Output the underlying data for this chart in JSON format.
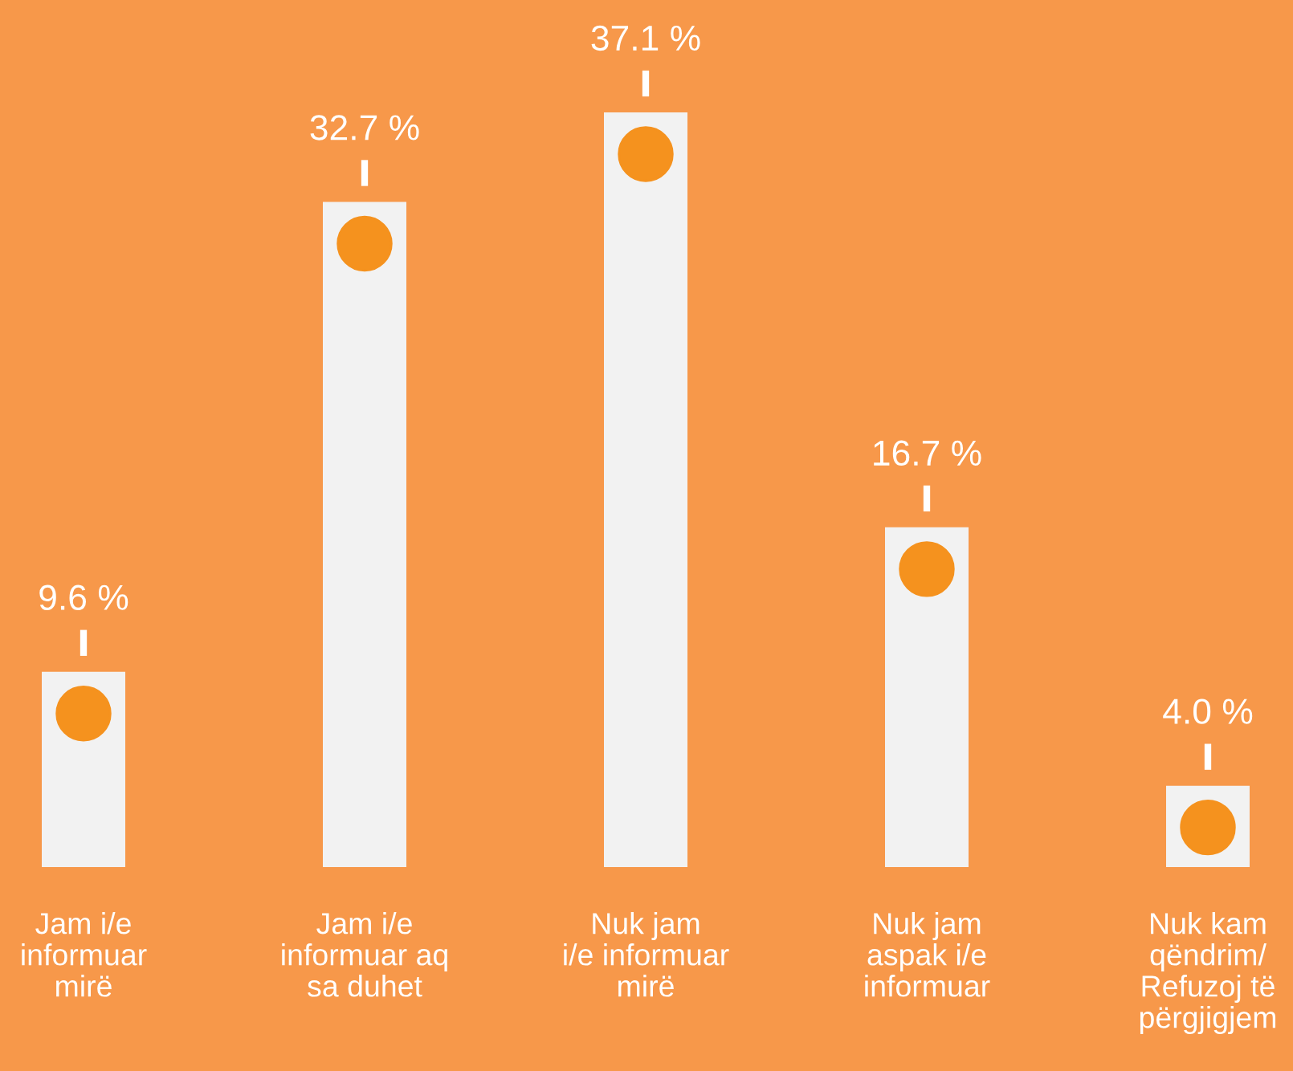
{
  "chart_data": {
    "type": "bar",
    "categories": [
      "Jam i/e\ninformuar\nmirë",
      "Jam i/e\ninformuar aq\nsa duhet",
      "Nuk jam\ni/e informuar\nmirë",
      "Nuk jam\naspak i/e\ninformuar",
      "Nuk kam\nqëndrim/\nRefuzoj të\npërgjigjem"
    ],
    "values": [
      9.6,
      32.7,
      37.1,
      16.7,
      4.0
    ],
    "value_labels": [
      "9.6 %",
      "32.7 %",
      "37.1 %",
      "16.7 %",
      "4.0 %"
    ],
    "color": "#f2f2f2"
  }
}
